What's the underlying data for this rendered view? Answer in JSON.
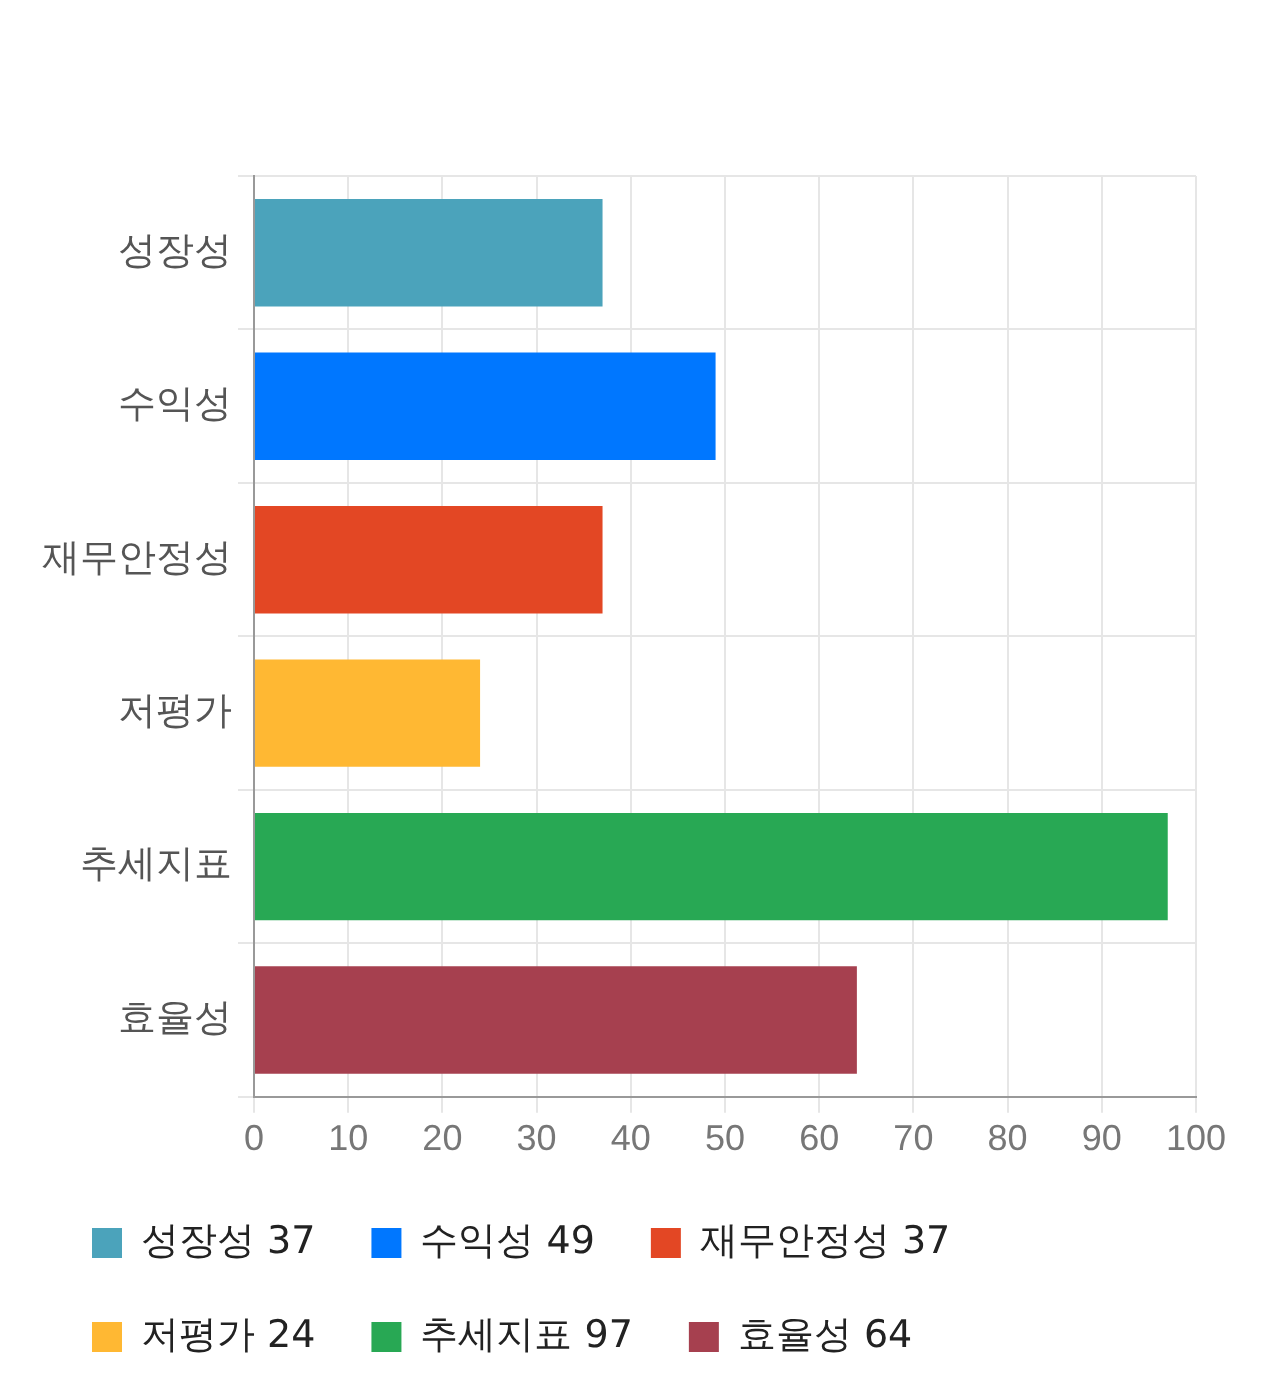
{
  "chart_data": {
    "type": "bar",
    "orientation": "horizontal",
    "stacked": true,
    "categories": [
      "성장성",
      "수익성",
      "재무안정성",
      "저평가",
      "추세지표",
      "효율성"
    ],
    "series": [
      {
        "name": "성장성 37",
        "color": "#4ba3bb",
        "values": [
          37,
          null,
          null,
          null,
          null,
          null
        ]
      },
      {
        "name": "수익성 49",
        "color": "#0077ff",
        "values": [
          null,
          49,
          null,
          null,
          null,
          null
        ]
      },
      {
        "name": "재무안정성 37",
        "color": "#e34724",
        "values": [
          null,
          null,
          37,
          null,
          null,
          null
        ]
      },
      {
        "name": "저평가 24",
        "color": "#ffb833",
        "values": [
          null,
          null,
          null,
          24,
          null,
          null
        ]
      },
      {
        "name": "추세지표 97",
        "color": "#28a854",
        "values": [
          null,
          null,
          null,
          null,
          97,
          null
        ]
      },
      {
        "name": "효율성 64",
        "color": "#a6404f",
        "values": [
          null,
          null,
          null,
          null,
          null,
          64
        ]
      }
    ],
    "xlim": [
      0,
      100
    ],
    "xticks": [
      0,
      10,
      20,
      30,
      40,
      50,
      60,
      70,
      80,
      90,
      100
    ],
    "grid": true,
    "legend": "bottom"
  }
}
